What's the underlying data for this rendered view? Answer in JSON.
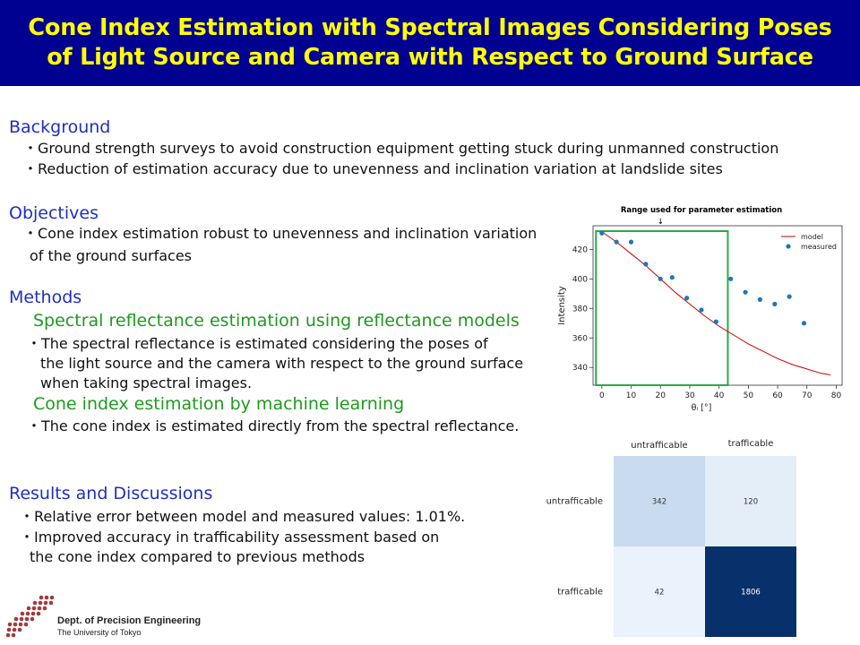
{
  "title": {
    "line1": "Cone Index Estimation with Spectral Images Considering Poses",
    "line2": "of  Light Source and Camera with Respect to Ground Surface"
  },
  "background": {
    "heading": "Background",
    "items": [
      "・Ground strength surveys to avoid construction equipment getting stuck during unmanned construction",
      "・Reduction of estimation accuracy due to unevenness and inclination variation at landslide sites"
    ]
  },
  "objectives": {
    "heading": "Objectives",
    "line1": "・Cone index estimation robust to unevenness and inclination variation",
    "line2": "of the ground surfaces"
  },
  "methods": {
    "heading": "Methods",
    "sub1": "Spectral reflectance estimation using reflectance models",
    "sub1_lines": [
      "・The spectral reflectance is estimated considering the poses of",
      "the light source and the camera with respect to the ground surface",
      "when taking spectral images."
    ],
    "sub2": "Cone index estimation by machine learning",
    "sub2_line": "・The cone index is estimated directly from the spectral reflectance."
  },
  "results": {
    "heading": "Results and Discussions",
    "lines": [
      "・Relative error between model and measured values: 1.01%.",
      "・Improved accuracy in trafficability assessment based on",
      "the cone index compared to previous methods"
    ]
  },
  "logo": {
    "line1": "Dept. of Precision Engineering",
    "line2": "The University of Tokyo"
  },
  "chart_data": [
    {
      "type": "scatter",
      "title": "Range used for parameter estimation",
      "arrow": "↓",
      "xlabel": "θᵢ [°]",
      "ylabel": "Intensity",
      "xlim": [
        -3,
        82
      ],
      "ylim": [
        328,
        436
      ],
      "xticks": [
        0,
        10,
        20,
        30,
        40,
        50,
        60,
        70,
        80
      ],
      "yticks": [
        340,
        360,
        380,
        400,
        420
      ],
      "highlight_range": [
        -2,
        43
      ],
      "legend_position": "top-right",
      "series": [
        {
          "name": "model",
          "kind": "line",
          "color": "#cc0000",
          "x": [
            0,
            5,
            10,
            15,
            20,
            25,
            30,
            35,
            40,
            45,
            50,
            55,
            60,
            65,
            70,
            75,
            78
          ],
          "y": [
            432,
            425,
            417,
            409,
            400,
            391,
            383,
            375,
            368,
            362,
            356,
            351,
            346,
            342,
            339,
            336,
            335
          ]
        },
        {
          "name": "measured",
          "kind": "points",
          "color": "#1f77b4",
          "x": [
            0,
            5,
            10,
            15,
            20,
            24,
            29,
            34,
            39,
            44,
            49,
            54,
            59,
            64,
            69
          ],
          "y": [
            431,
            425,
            425,
            410,
            400,
            401,
            387,
            379,
            371,
            400,
            391,
            386,
            383,
            388,
            370
          ]
        }
      ]
    },
    {
      "type": "heatmap",
      "columns": [
        "untrafficable",
        "trafficable"
      ],
      "rows": [
        "untrafficable",
        "trafficable"
      ],
      "values": [
        [
          342,
          120
        ],
        [
          42,
          1806
        ]
      ],
      "colors": [
        [
          "#c9dcef",
          "#e4eef9"
        ],
        [
          "#eaf2fb",
          "#08306b"
        ]
      ]
    }
  ]
}
